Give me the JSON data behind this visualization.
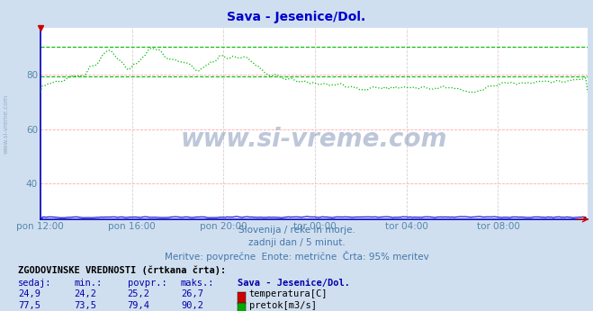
{
  "title": "Sava - Jesenice/Dol.",
  "title_color": "#0000cc",
  "bg_color": "#d0dff0",
  "plot_bg_color": "#ffffff",
  "grid_color_h": "#ffaaaa",
  "grid_color_v": "#ddcccc",
  "xlabel_ticks": [
    "pon 12:00",
    "pon 16:00",
    "pon 20:00",
    "tor 00:00",
    "tor 04:00",
    "tor 08:00"
  ],
  "xlabel_ticks_pos": [
    0,
    48,
    96,
    144,
    192,
    240
  ],
  "total_points": 288,
  "ylim_min": 27,
  "ylim_max": 97,
  "yticks": [
    40,
    60,
    80
  ],
  "ytick_labels": [
    "40",
    "60",
    "80"
  ],
  "watermark_text": "www.si-vreme.com",
  "watermark_color": "#8899bb",
  "subtitle1": "Slovenija / reke in morje.",
  "subtitle2": "zadnji dan / 5 minut.",
  "subtitle3": "Meritve: povprečne  Enote: metrične  Črta: 95% meritev",
  "subtitle_color": "#4477aa",
  "table_header": "ZGODOVINSKE VREDNOSTI (črtkana črta):",
  "table_cols": [
    "sedaj:",
    "min.:",
    "povpr.:",
    "maks.:"
  ],
  "table_col_header": "Sava - Jesenice/Dol.",
  "row1_vals": [
    "24,9",
    "24,2",
    "25,2",
    "26,7"
  ],
  "row1_label": "temperatura[C]",
  "row1_color": "#cc0000",
  "row2_vals": [
    "77,5",
    "73,5",
    "79,4",
    "90,2"
  ],
  "row2_label": "pretok[m3/s]",
  "row2_color": "#00aa00",
  "temp_color": "#cc0000",
  "flow_color": "#00bb00",
  "height_color": "#0000cc",
  "dashed_flow_max": 90.2,
  "dashed_flow_avg": 79.4,
  "dashed_temp_max": 26.7,
  "dashed_temp_avg": 25.2,
  "left_label_color": "#5588aa"
}
